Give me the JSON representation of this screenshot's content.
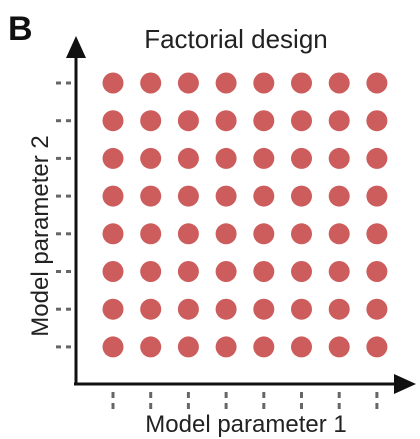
{
  "panel_label": "B",
  "title": "Factorial design",
  "x_axis_label": "Model parameter 1",
  "y_axis_label": "Model parameter 2",
  "grid": {
    "columns": 8,
    "rows": 8
  },
  "colors": {
    "dot": "#cd5c5c",
    "axis": "#111111",
    "tick": "#666666",
    "text": "#222222"
  }
}
